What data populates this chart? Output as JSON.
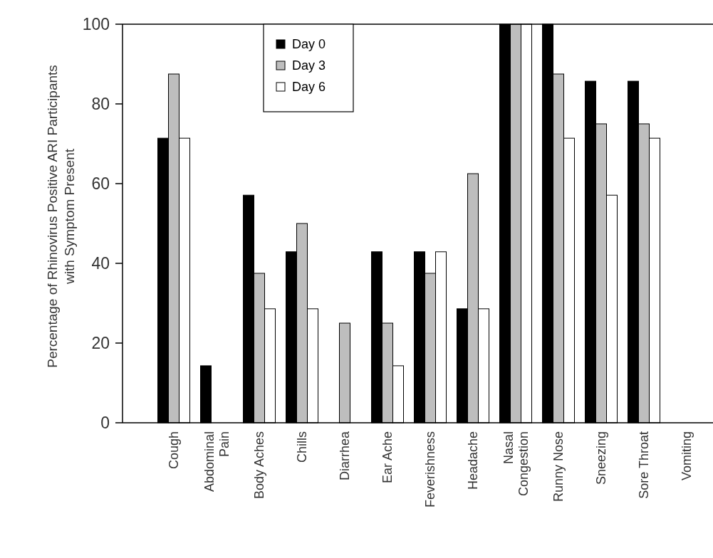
{
  "chart_data": {
    "type": "bar",
    "ylabel": "Percentage of Rhinovirus Positive ARI Participants\nwith Symptom Present",
    "categories": [
      "Cough",
      "Abdominal\nPain",
      "Body Aches",
      "Chills",
      "Diarrhea",
      "Ear Ache",
      "Feverishness",
      "Headache",
      "Nasal\nCongestion",
      "Runny Nose",
      "Sneezing",
      "Sore Throat",
      "Vomiting"
    ],
    "series": [
      {
        "name": "Day 0",
        "color": "#000000",
        "values": [
          71.4,
          14.3,
          57.1,
          42.9,
          0,
          42.9,
          42.9,
          28.6,
          100,
          100,
          85.7,
          85.7,
          0
        ]
      },
      {
        "name": "Day 3",
        "color": "#bebebe",
        "values": [
          87.5,
          0,
          37.5,
          50,
          25,
          25,
          37.5,
          62.5,
          100,
          87.5,
          75,
          75,
          0
        ]
      },
      {
        "name": "Day 6",
        "color": "#ffffff",
        "values": [
          71.4,
          0,
          28.6,
          28.6,
          0,
          14.3,
          42.9,
          28.6,
          100,
          71.4,
          57.1,
          71.4,
          0
        ]
      }
    ],
    "ylim": [
      0,
      100
    ],
    "yticks": [
      0,
      20,
      40,
      60,
      80,
      100
    ],
    "legend": "top left",
    "grid": false
  }
}
